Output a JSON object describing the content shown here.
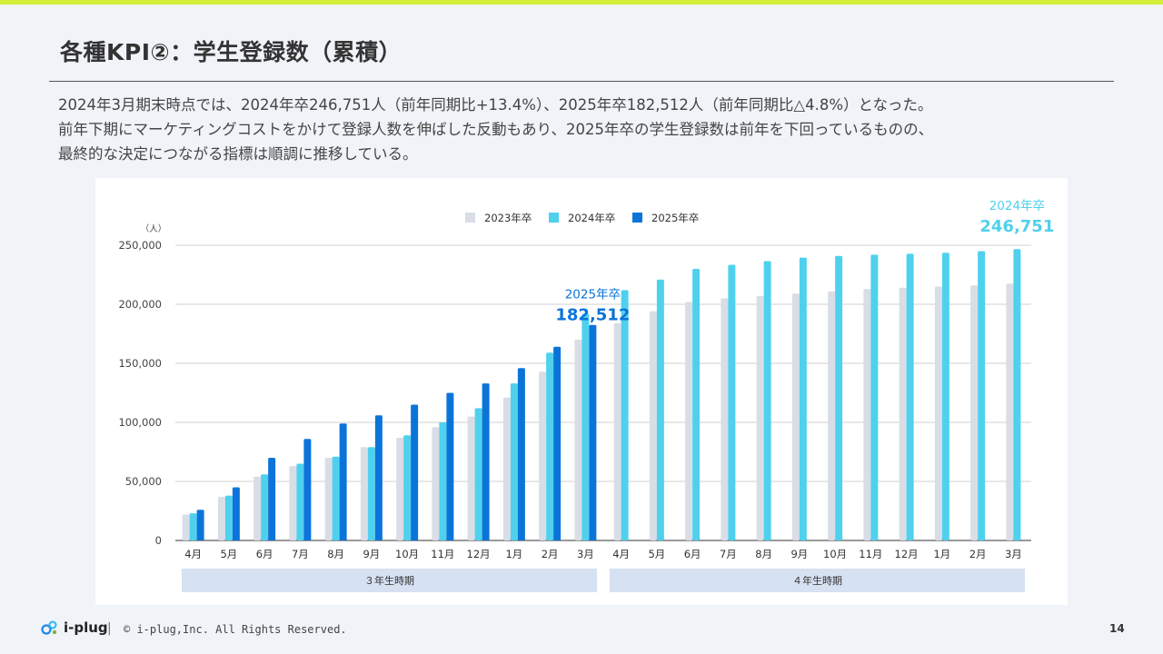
{
  "slide": {
    "title": "各種KPI②：学生登録数（累積）",
    "description": [
      "2024年3月期末時点では、2024年卒246,751人（前年同期比+13.4%）、2025年卒182,512人（前年同期比△4.8%）となった。",
      "前年下期にマーケティングコストをかけて登録人数を伸ばした反動もあり、2025年卒の学生登録数は前年を下回っているものの、",
      "最終的な決定につながる指標は順調に推移している。"
    ],
    "page_number": "14"
  },
  "footer": {
    "logo_text": "i-plug",
    "separator": "|",
    "copyright": "© i-plug,Inc. All Rights Reserved."
  },
  "colors": {
    "accent_bar": "#d4ef3a",
    "series_2023": "#d9dde6",
    "series_2024": "#4fd1ee",
    "series_2025": "#0b74d9",
    "period_band": "#d6e1f2"
  },
  "chart_data": {
    "type": "bar",
    "title": "",
    "ylabel": "（人）",
    "xlabel": "",
    "ylim": [
      0,
      250000
    ],
    "yticks": [
      0,
      50000,
      100000,
      150000,
      200000,
      250000
    ],
    "ytick_labels": [
      "0",
      "50,000",
      "100,000",
      "150,000",
      "200,000",
      "250,000"
    ],
    "grid": true,
    "legend_position": "top-center",
    "categories": [
      "4月",
      "5月",
      "6月",
      "7月",
      "8月",
      "9月",
      "10月",
      "11月",
      "12月",
      "1月",
      "2月",
      "3月",
      "4月",
      "5月",
      "6月",
      "7月",
      "8月",
      "9月",
      "10月",
      "11月",
      "12月",
      "1月",
      "2月",
      "3月"
    ],
    "series": [
      {
        "name": "2023年卒",
        "color": "#d9dde6",
        "values": [
          22000,
          37000,
          54000,
          63000,
          70000,
          79000,
          87000,
          96000,
          105000,
          121000,
          143000,
          170000,
          184000,
          194000,
          202000,
          205000,
          207000,
          209000,
          211000,
          213000,
          214000,
          215000,
          216000,
          217500
        ]
      },
      {
        "name": "2024年卒",
        "color": "#4fd1ee",
        "values": [
          23000,
          38000,
          56000,
          65000,
          71000,
          79000,
          89000,
          100000,
          112000,
          133000,
          159000,
          192000,
          212000,
          221000,
          230000,
          233500,
          236500,
          239500,
          241000,
          242000,
          242800,
          243700,
          245000,
          246751
        ]
      },
      {
        "name": "2025年卒",
        "color": "#0b74d9",
        "values": [
          26000,
          45000,
          70000,
          86000,
          99000,
          106000,
          115000,
          125000,
          133000,
          146000,
          164000,
          182512,
          null,
          null,
          null,
          null,
          null,
          null,
          null,
          null,
          null,
          null,
          null,
          null
        ]
      }
    ],
    "periods": [
      {
        "label": "３年生時期",
        "from": 0,
        "to": 11
      },
      {
        "label": "４年生時期",
        "from": 12,
        "to": 23
      }
    ],
    "annotations": [
      {
        "series": "2025年卒",
        "index": 11,
        "label": "2025年卒",
        "value_label": "182,512"
      },
      {
        "series": "2024年卒",
        "index": 23,
        "label": "2024年卒",
        "value_label": "246,751"
      }
    ]
  }
}
